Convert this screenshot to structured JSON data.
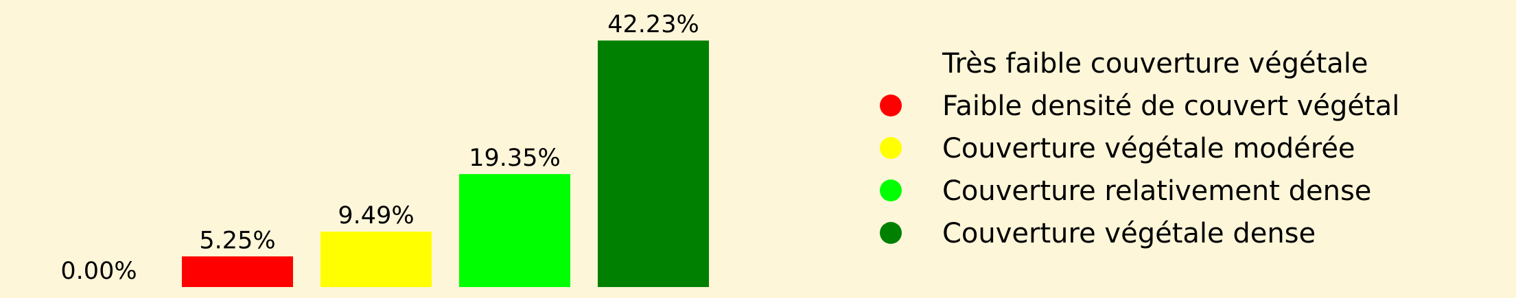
{
  "chart_data": {
    "type": "bar",
    "categories": [
      "Très faible couverture végétale",
      "Faible densité de couvert végétal",
      "Couverture végétale modérée",
      "Couverture relativement dense",
      "Couverture végétale dense"
    ],
    "values": [
      0.0,
      5.25,
      9.49,
      19.35,
      42.23
    ],
    "value_labels": [
      "0.00%",
      "5.25%",
      "9.49%",
      "19.35%",
      "42.23%"
    ],
    "colors": [
      "#fdf6d9",
      "#ff0000",
      "#ffff00",
      "#00ff00",
      "#008000"
    ],
    "ylim": [
      0,
      48
    ],
    "grid": false,
    "legend_position": "right",
    "background": "#fdf6d9"
  }
}
